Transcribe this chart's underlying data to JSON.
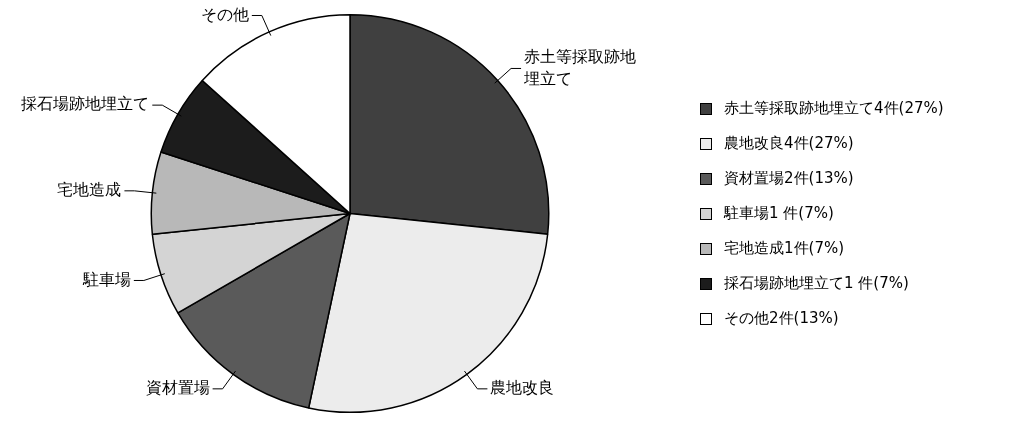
{
  "chart_data": {
    "type": "pie",
    "categories": [
      "赤土等採取跡地埋立て",
      "農地改良",
      "資材置場",
      "駐車場",
      "宅地造成",
      "採石場跡地埋立て",
      "その他"
    ],
    "values": [
      4,
      4,
      2,
      1,
      1,
      1,
      2
    ],
    "value_labels": [
      "4件(27%)",
      "4件(27%)",
      "2件(13%)",
      "1 件(7%)",
      "1件(7%)",
      "1 件(7%)",
      "2件(13%)"
    ],
    "colors": [
      "#404040",
      "#ececec",
      "#5a5a5a",
      "#d4d4d4",
      "#b8b8b8",
      "#1c1c1c",
      "#ffffff"
    ],
    "legend": "right"
  }
}
